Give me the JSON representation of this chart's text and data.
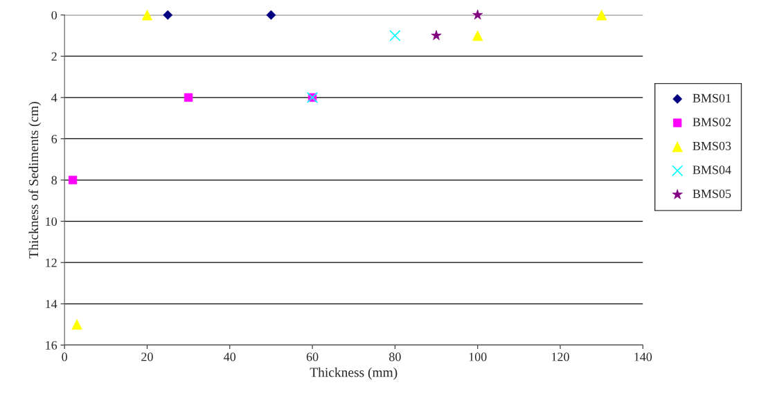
{
  "chart_data": {
    "type": "scatter",
    "xlabel": "Thickness (mm)",
    "ylabel": "Thickness of Sediments (cm)",
    "xlim": [
      0,
      140
    ],
    "xticks": [
      0,
      20,
      40,
      60,
      80,
      100,
      120,
      140
    ],
    "ylim": [
      16,
      0
    ],
    "yticks": [
      0,
      2,
      4,
      6,
      8,
      10,
      12,
      14,
      16
    ],
    "grid": "y",
    "legend": "right",
    "series": [
      {
        "name": "BMS01",
        "color": "#000080",
        "marker": "diamond",
        "x": [
          25,
          50
        ],
        "values": [
          0,
          0
        ]
      },
      {
        "name": "BMS02",
        "color": "#ff00ff",
        "marker": "square",
        "x": [
          30,
          2,
          60
        ],
        "values": [
          4,
          8,
          4
        ]
      },
      {
        "name": "BMS03",
        "color": "#ffff00",
        "marker": "triangle",
        "x": [
          20,
          3,
          100,
          130
        ],
        "values": [
          0,
          15,
          1,
          0
        ]
      },
      {
        "name": "BMS04",
        "color": "#00ffff",
        "marker": "cross",
        "x": [
          80,
          60
        ],
        "values": [
          1,
          4
        ]
      },
      {
        "name": "BMS05",
        "color": "#800080",
        "marker": "star",
        "x": [
          90,
          100
        ],
        "values": [
          1,
          0
        ]
      }
    ]
  }
}
